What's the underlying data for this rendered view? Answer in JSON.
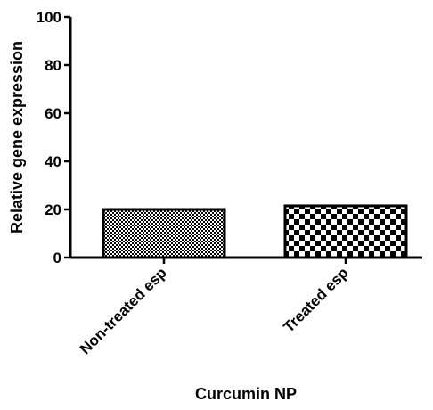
{
  "chart_data": {
    "type": "bar",
    "categories": [
      "Non-treated esp",
      "Treated esp"
    ],
    "values": [
      20,
      21.5
    ],
    "xlabel": "Curcumin NP",
    "ylabel": "Relative gene expression",
    "ylim": [
      0,
      100
    ],
    "yticks": [
      "0",
      "20",
      "40",
      "60",
      "80",
      "100"
    ],
    "grid": false,
    "legend": "none",
    "bar_patterns": [
      "fine-checker",
      "coarse-checker"
    ],
    "colors": {
      "bar_fill_dark": "#000000",
      "bar_fill_light": "#ffffff",
      "axis": "#000000"
    }
  }
}
